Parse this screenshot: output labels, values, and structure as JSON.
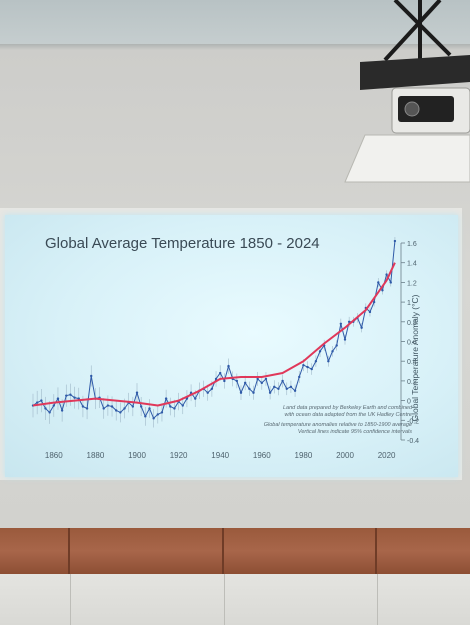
{
  "colors": {
    "trend": "#e0385a",
    "data": "#2f5aa8",
    "axis": "#6b7f8a",
    "slide_bg": "#ddf4fa"
  },
  "slide": {
    "title": "Global Average Temperature 1850 - 2024",
    "credits": [
      "Land data prepared by Berkeley Earth and combined",
      "with ocean data adapted from the UK Hadley Centre",
      "Global temperature anomalies relative to 1850-1900 average",
      "Vertical lines indicate 95% confidence intervals"
    ]
  },
  "chart_data": {
    "type": "line",
    "title": "Global Average Temperature 1850 - 2024",
    "xlabel": "",
    "ylabel": "Global Temperature Anomaly (°C)",
    "xlim": [
      1850,
      2025
    ],
    "ylim": [
      -0.4,
      1.6
    ],
    "x_ticks": [
      1860,
      1880,
      1900,
      1920,
      1940,
      1960,
      1980,
      2000,
      2020
    ],
    "y_ticks": [
      -0.4,
      -0.2,
      0,
      0.2,
      0.4,
      0.6,
      0.8,
      1,
      1.2,
      1.4,
      1.6
    ],
    "y_tick_labels": [
      "-0.4",
      "-0.2",
      "0",
      "0.2",
      "0.4",
      "0.6",
      "0.8",
      "1",
      "1.2",
      "1.4",
      "1.6"
    ],
    "grid": false,
    "series": [
      {
        "x": [
          1850,
          1852,
          1854,
          1856,
          1858,
          1860,
          1862,
          1864,
          1866,
          1868,
          1870,
          1872,
          1874,
          1876,
          1878,
          1880,
          1882,
          1884,
          1886,
          1888,
          1890,
          1892,
          1894,
          1896,
          1898,
          1900,
          1902,
          1904,
          1906,
          1908,
          1910,
          1912,
          1914,
          1916,
          1918,
          1920,
          1922,
          1924,
          1926,
          1928,
          1930,
          1932,
          1934,
          1936,
          1938,
          1940,
          1942,
          1944,
          1946,
          1948,
          1950,
          1952,
          1954,
          1956,
          1958,
          1960,
          1962,
          1964,
          1966,
          1968,
          1970,
          1972,
          1974,
          1976,
          1978,
          1980,
          1982,
          1984,
          1986,
          1988,
          1990,
          1992,
          1994,
          1996,
          1998,
          2000,
          2002,
          2004,
          2006,
          2008,
          2010,
          2012,
          2014,
          2016,
          2018,
          2020,
          2022,
          2024
        ],
        "values": [
          -0.05,
          -0.02,
          0.0,
          -0.08,
          -0.12,
          -0.05,
          0.02,
          -0.1,
          0.05,
          0.06,
          0.03,
          0.02,
          -0.06,
          -0.08,
          0.25,
          0.02,
          0.03,
          -0.08,
          -0.05,
          -0.06,
          -0.1,
          -0.12,
          -0.08,
          -0.02,
          -0.06,
          0.08,
          -0.06,
          -0.16,
          -0.08,
          -0.18,
          -0.14,
          -0.12,
          0.02,
          -0.06,
          -0.08,
          -0.01,
          -0.05,
          0.02,
          0.08,
          0.02,
          0.1,
          0.12,
          0.08,
          0.12,
          0.22,
          0.28,
          0.2,
          0.35,
          0.22,
          0.2,
          0.08,
          0.18,
          0.12,
          0.08,
          0.22,
          0.18,
          0.22,
          0.08,
          0.14,
          0.12,
          0.2,
          0.12,
          0.14,
          0.1,
          0.24,
          0.36,
          0.34,
          0.32,
          0.4,
          0.5,
          0.56,
          0.4,
          0.5,
          0.56,
          0.78,
          0.62,
          0.8,
          0.8,
          0.84,
          0.74,
          0.94,
          0.9,
          1.0,
          1.2,
          1.12,
          1.28,
          1.2,
          1.62
        ]
      },
      {
        "x": [
          1850,
          1860,
          1870,
          1880,
          1890,
          1900,
          1910,
          1920,
          1930,
          1940,
          1950,
          1960,
          1970,
          1980,
          1990,
          2000,
          2010,
          2020,
          2024
        ],
        "values": [
          -0.05,
          -0.02,
          0.0,
          0.02,
          0.0,
          -0.02,
          -0.05,
          0.0,
          0.1,
          0.22,
          0.24,
          0.24,
          0.28,
          0.4,
          0.58,
          0.74,
          0.92,
          1.22,
          1.4
        ]
      }
    ]
  }
}
